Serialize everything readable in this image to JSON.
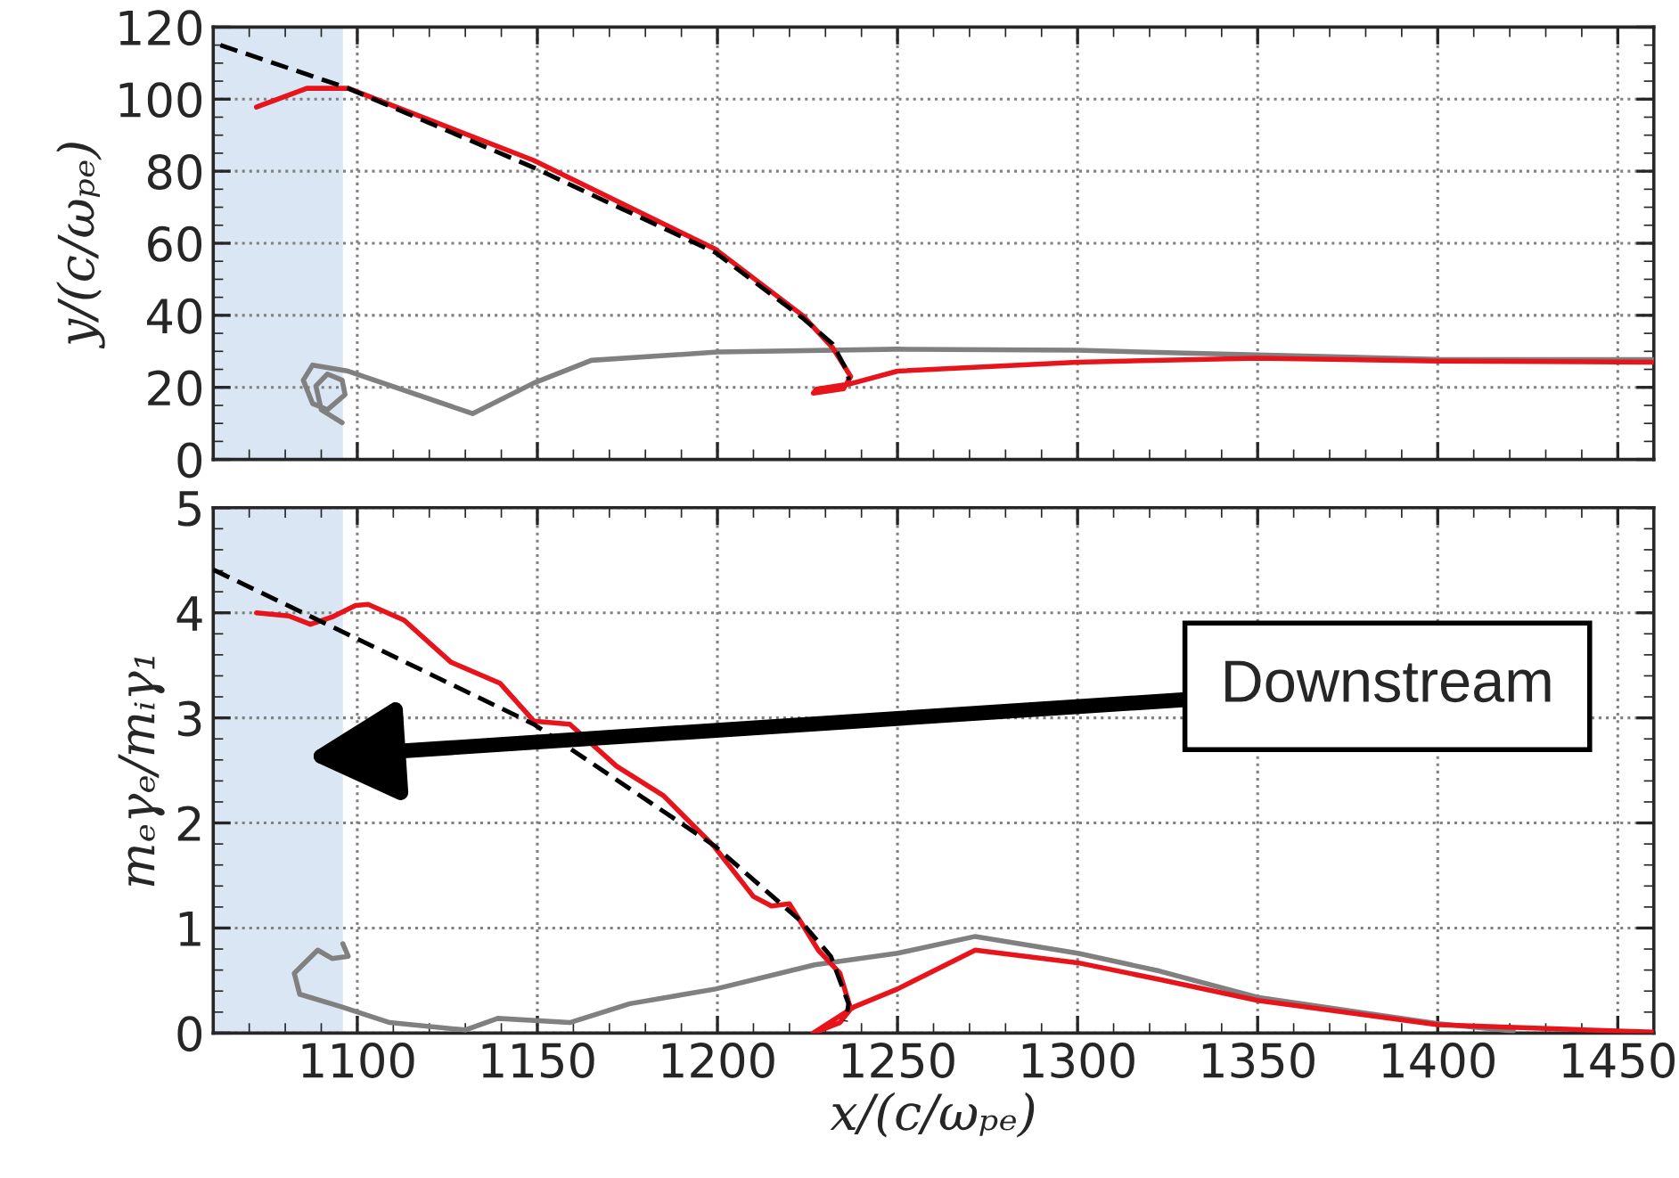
{
  "chart_data": [
    {
      "type": "line",
      "ylabel": "y/(c/ωₚₑ)",
      "xlim": [
        1060,
        1460
      ],
      "xticks": [
        1100,
        1150,
        1200,
        1250,
        1300,
        1350,
        1400,
        1450
      ],
      "ylim": [
        0,
        120
      ],
      "yticks": [
        0,
        20,
        40,
        60,
        80,
        100,
        120
      ],
      "grid": true,
      "tick_labels": "y",
      "bands": [
        {
          "axis": "x",
          "from": 1060,
          "to": 1096,
          "color": "#dae6f3"
        }
      ],
      "series": [
        {
          "color": "#808080",
          "x": [
            1460,
            1400,
            1350,
            1300,
            1250,
            1200,
            1165,
            1149,
            1132,
            1097.5,
            1087.6,
            1085,
            1087.6,
            1091.7,
            1096.6,
            1095.8,
            1091.7,
            1088.5,
            1090,
            1095.8
          ],
          "values": [
            27.7,
            27.8,
            29,
            30.3,
            30.6,
            29.8,
            27.5,
            21.2,
            12.7,
            24.5,
            26.2,
            22,
            15.5,
            13.8,
            18,
            22,
            23.7,
            20.4,
            13.8,
            10.2
          ]
        },
        {
          "color": "#e8141c",
          "x": [
            1072,
            1086,
            1097.5,
            1149,
            1199.5,
            1223.6,
            1232,
            1237,
            1235,
            1226.6,
            1227.5,
            1237,
            1250,
            1300,
            1350,
            1400,
            1460
          ],
          "values": [
            97.8,
            103,
            103,
            83,
            58.3,
            40,
            31,
            23,
            19.6,
            18.4,
            19.5,
            21,
            24.5,
            27,
            28.1,
            27.3,
            27
          ]
        },
        {
          "color": "#000000",
          "line_style": "dashed",
          "x": [
            1062,
            1097.5,
            1149,
            1199.5,
            1223.6,
            1232,
            1236,
            1236.5
          ],
          "values": [
            115,
            103,
            81,
            57.4,
            39.3,
            32,
            24.5,
            22
          ]
        }
      ]
    },
    {
      "type": "line",
      "xlabel": "x/(c/ωₚₑ)",
      "ylabel": "mₑγₑ/mᵢγ₁",
      "xlim": [
        1060,
        1460
      ],
      "xticks": [
        1100,
        1150,
        1200,
        1250,
        1300,
        1350,
        1400,
        1450
      ],
      "ylim": [
        0,
        5
      ],
      "yticks": [
        0,
        1,
        2,
        3,
        4,
        5
      ],
      "grid": true,
      "bands": [
        {
          "axis": "x",
          "from": 1060,
          "to": 1096,
          "color": "#dae6f3"
        }
      ],
      "annotations": [
        "Downstream"
      ],
      "series": [
        {
          "color": "#808080",
          "x": [
            1096,
            1097.5,
            1093,
            1089,
            1082.5,
            1084,
            1095.6,
            1109,
            1130,
            1139,
            1159,
            1175.7,
            1199.5,
            1227,
            1250,
            1271.6,
            1300,
            1322.8,
            1350,
            1400,
            1421
          ],
          "values": [
            0.85,
            0.73,
            0.71,
            0.79,
            0.57,
            0.37,
            0.25,
            0.1,
            0.03,
            0.14,
            0.1,
            0.28,
            0.42,
            0.65,
            0.76,
            0.92,
            0.76,
            0.59,
            0.34,
            0.09,
            0.02
          ]
        },
        {
          "color": "#e8141c",
          "x": [
            1072,
            1081,
            1087,
            1093,
            1099.5,
            1103,
            1113,
            1126,
            1139.6,
            1149,
            1159,
            1172,
            1185,
            1199,
            1210,
            1215,
            1220,
            1228,
            1234,
            1237,
            1234,
            1226.6,
            1232,
            1238,
            1250,
            1271.6,
            1300,
            1322.8,
            1350,
            1400,
            1450,
            1460
          ],
          "values": [
            4.0,
            3.97,
            3.89,
            3.96,
            4.07,
            4.08,
            3.93,
            3.53,
            3.33,
            2.97,
            2.94,
            2.54,
            2.26,
            1.78,
            1.3,
            1.21,
            1.23,
            0.79,
            0.57,
            0.23,
            0.1,
            0.0,
            0.12,
            0.25,
            0.42,
            0.79,
            0.67,
            0.51,
            0.31,
            0.08,
            0.02,
            0.01
          ]
        },
        {
          "color": "#000000",
          "line_style": "dashed",
          "x": [
            1060,
            1099.5,
            1149,
            1199.3,
            1223,
            1231.5,
            1236.4,
            1235.6
          ],
          "values": [
            4.41,
            3.76,
            2.94,
            1.78,
            1.07,
            0.73,
            0.28,
            0.11
          ]
        }
      ]
    }
  ]
}
